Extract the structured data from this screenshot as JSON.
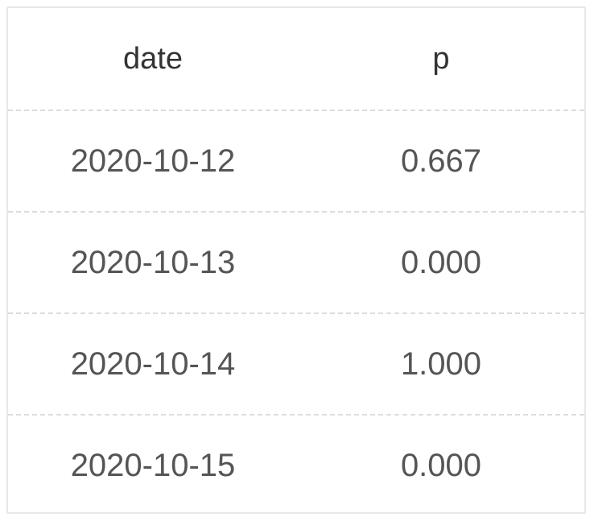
{
  "colors": {
    "border": "#e8e8e8",
    "divider": "#dcdcdc",
    "header_text": "#333333",
    "cell_text": "#555555",
    "background": "#ffffff"
  },
  "chart_data": {
    "type": "table",
    "columns": [
      "date",
      "p"
    ],
    "rows": [
      [
        "2020-10-12",
        "0.667"
      ],
      [
        "2020-10-13",
        "0.000"
      ],
      [
        "2020-10-14",
        "1.000"
      ],
      [
        "2020-10-15",
        "0.000"
      ]
    ]
  }
}
